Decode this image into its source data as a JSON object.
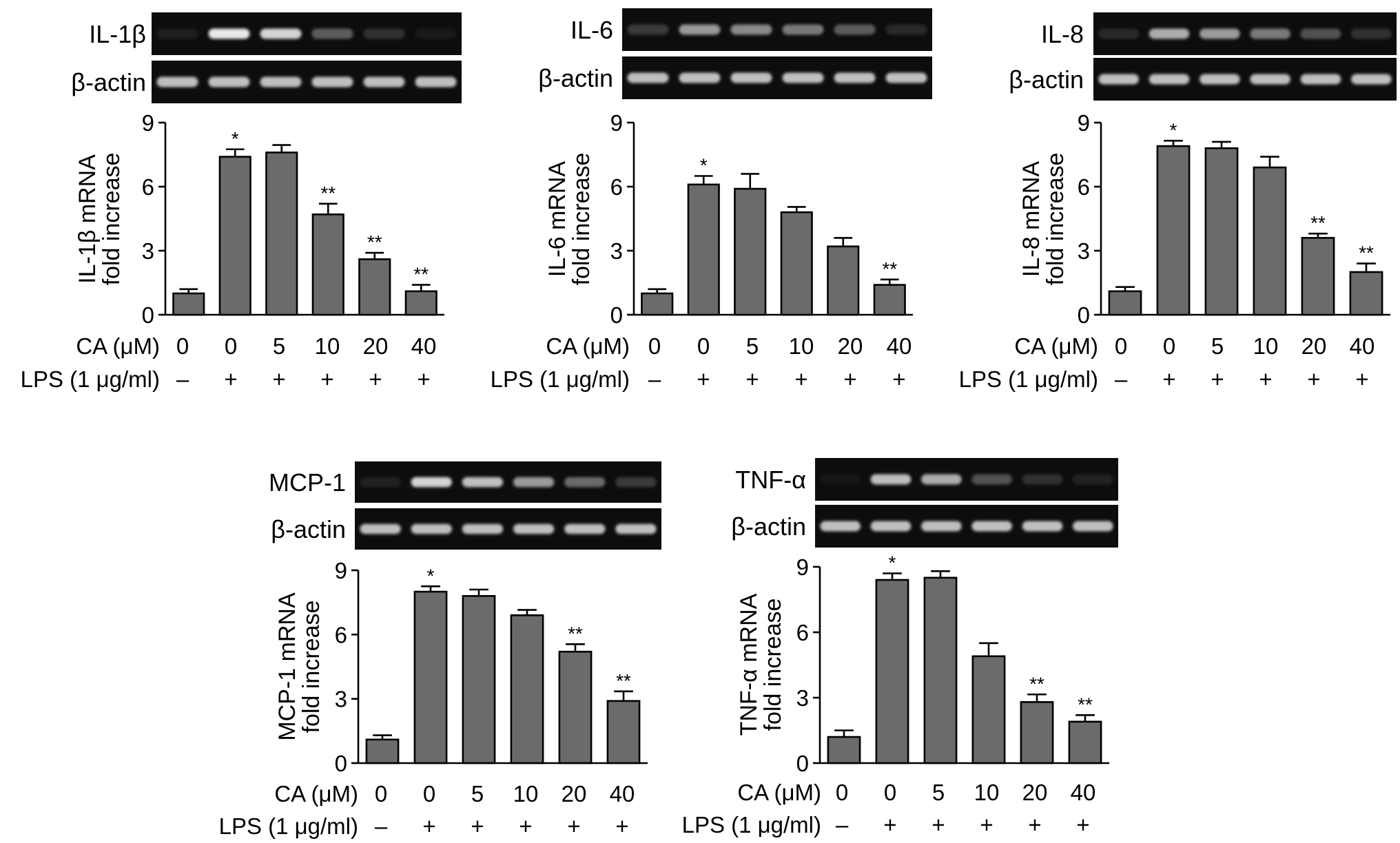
{
  "figure": {
    "ca_label": "CA (μM)",
    "lps_label": "LPS (1 μg/ml)",
    "ca_values": [
      "0",
      "0",
      "5",
      "10",
      "20",
      "40"
    ],
    "lps_values": [
      "–",
      "+",
      "+",
      "+",
      "+",
      "+"
    ],
    "control_label": "β-actin"
  },
  "chart_data": [
    {
      "type": "bar",
      "gel_label": "IL-1β",
      "ylabel": [
        "IL-1β mRNA",
        "fold increase"
      ],
      "ylim": [
        0,
        9
      ],
      "yticks": [
        "0",
        "3",
        "6",
        "9"
      ],
      "values": [
        1.0,
        7.4,
        7.6,
        4.7,
        2.6,
        1.1
      ],
      "errors": [
        0.2,
        0.35,
        0.35,
        0.5,
        0.3,
        0.3
      ],
      "significance": [
        "",
        "*",
        "",
        "**",
        "**",
        "**"
      ],
      "band_intensity": [
        0.2,
        0.95,
        0.9,
        0.55,
        0.35,
        0.1
      ]
    },
    {
      "type": "bar",
      "gel_label": "IL-6",
      "ylabel": [
        "IL-6 mRNA",
        "fold increase"
      ],
      "ylim": [
        0,
        9
      ],
      "yticks": [
        "0",
        "3",
        "6",
        "9"
      ],
      "values": [
        1.0,
        6.1,
        5.9,
        4.8,
        3.2,
        1.4
      ],
      "errors": [
        0.2,
        0.4,
        0.7,
        0.25,
        0.4,
        0.25
      ],
      "significance": [
        "",
        "*",
        "",
        "",
        "",
        "**"
      ],
      "band_intensity": [
        0.4,
        0.75,
        0.7,
        0.65,
        0.55,
        0.3
      ]
    },
    {
      "type": "bar",
      "gel_label": "IL-8",
      "ylabel": [
        "IL-8 mRNA",
        "fold increase"
      ],
      "ylim": [
        0,
        9
      ],
      "yticks": [
        "0",
        "3",
        "6",
        "9"
      ],
      "values": [
        1.1,
        7.9,
        7.8,
        6.9,
        3.6,
        2.0
      ],
      "errors": [
        0.2,
        0.25,
        0.3,
        0.5,
        0.2,
        0.4
      ],
      "significance": [
        "",
        "*",
        "",
        "",
        "**",
        "**"
      ],
      "band_intensity": [
        0.3,
        0.8,
        0.75,
        0.65,
        0.5,
        0.35
      ]
    },
    {
      "type": "bar",
      "gel_label": "MCP-1",
      "ylabel": [
        "MCP-1 mRNA",
        "fold increase"
      ],
      "ylim": [
        0,
        9
      ],
      "yticks": [
        "0",
        "3",
        "6",
        "9"
      ],
      "values": [
        1.1,
        8.0,
        7.8,
        6.9,
        5.2,
        2.9
      ],
      "errors": [
        0.2,
        0.25,
        0.3,
        0.25,
        0.35,
        0.45
      ],
      "significance": [
        "",
        "*",
        "",
        "",
        "**",
        "**"
      ],
      "band_intensity": [
        0.25,
        0.9,
        0.85,
        0.75,
        0.6,
        0.4
      ]
    },
    {
      "type": "bar",
      "gel_label": "TNF-α",
      "ylabel": [
        "TNF-α mRNA",
        "fold increase"
      ],
      "ylim": [
        0,
        9
      ],
      "yticks": [
        "0",
        "3",
        "6",
        "9"
      ],
      "values": [
        1.2,
        8.4,
        8.5,
        4.9,
        2.8,
        1.9
      ],
      "errors": [
        0.3,
        0.3,
        0.3,
        0.6,
        0.35,
        0.3
      ],
      "significance": [
        "",
        "*",
        "",
        "",
        "**",
        "**"
      ],
      "band_intensity": [
        0.05,
        0.85,
        0.8,
        0.5,
        0.35,
        0.25
      ]
    }
  ]
}
